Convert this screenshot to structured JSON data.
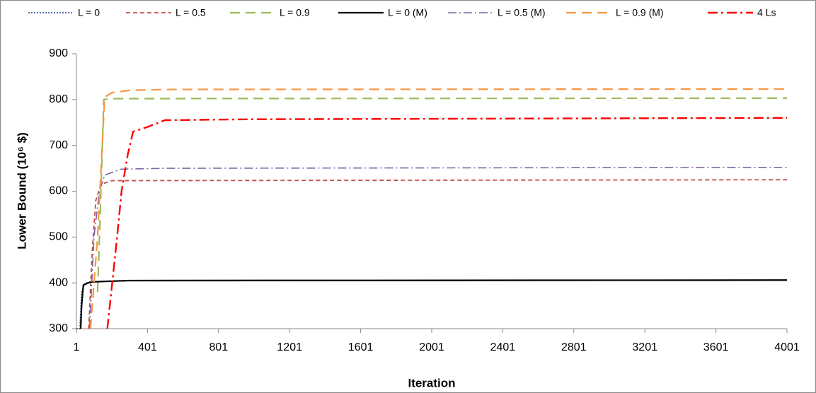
{
  "chart_data": {
    "type": "line",
    "xlabel": "Iteration",
    "ylabel": "Lower Bound (10⁶ $)",
    "xlim": [
      1,
      4001
    ],
    "xticks": [
      1,
      401,
      801,
      1201,
      1601,
      2001,
      2401,
      2801,
      3201,
      3601,
      4001
    ],
    "ylim": [
      300,
      900
    ],
    "yticks": [
      300,
      400,
      500,
      600,
      700,
      800,
      900
    ],
    "legend": "top",
    "series": [
      {
        "name": "L = 0",
        "color": "#1f3f8f",
        "line_style": "dotted",
        "x": [
          1,
          20,
          30,
          50,
          150,
          4001
        ],
        "values": [
          300,
          300,
          380,
          400,
          404,
          406
        ]
      },
      {
        "name": "L = 0.5",
        "color": "#c0504d",
        "line_style": "dashed",
        "x": [
          70,
          90,
          110,
          140,
          200,
          4001
        ],
        "values": [
          300,
          470,
          580,
          615,
          623,
          625
        ]
      },
      {
        "name": "L = 0.9",
        "color": "#9bbb59",
        "line_style": "long-dashed",
        "x": [
          120,
          135,
          155,
          200,
          4001
        ],
        "values": [
          380,
          550,
          800,
          802,
          803
        ]
      },
      {
        "name": "L = 0 (M)",
        "color": "#000000",
        "line_style": "solid",
        "x": [
          25,
          30,
          40,
          80,
          300,
          4001
        ],
        "values": [
          300,
          350,
          395,
          402,
          405,
          406
        ]
      },
      {
        "name": "L = 0.5 (M)",
        "color": "#8064a2",
        "line_style": "dash-dot",
        "x": [
          75,
          100,
          130,
          160,
          250,
          500,
          4001
        ],
        "values": [
          300,
          500,
          600,
          635,
          648,
          650,
          652
        ]
      },
      {
        "name": "L = 0.9 (M)",
        "color": "#f79646",
        "line_style": "long-dashed",
        "x": [
          80,
          120,
          160,
          200,
          300,
          500,
          4001
        ],
        "values": [
          300,
          500,
          805,
          815,
          820,
          822,
          823
        ]
      },
      {
        "name": "4 Ls",
        "color": "#ff0000",
        "line_style": "dash-dot-thick",
        "x": [
          175,
          230,
          255,
          290,
          320,
          400,
          500,
          1000,
          4001
        ],
        "values": [
          300,
          500,
          600,
          680,
          730,
          740,
          755,
          757,
          760
        ]
      }
    ]
  }
}
